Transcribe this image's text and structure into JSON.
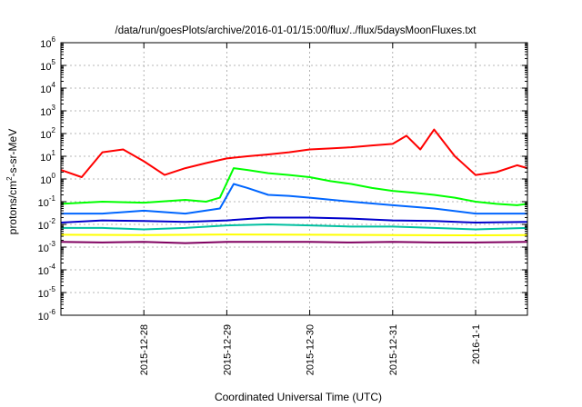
{
  "chart_data": {
    "type": "line",
    "title": "/data/run/goesPlots/archive/2016-01-01/15:00/flux/../flux/5daysMoonFluxes.txt",
    "xlabel": "Coordinated Universal Time (UTC)",
    "ylabel": {
      "base": "protons/cm",
      "sup": "2",
      "rest": "-s-sr-MeV"
    },
    "yscale": "log",
    "ylim": [
      1e-06,
      1000000.0
    ],
    "xlim": [
      "2015-12-27 00:00",
      "2016-01-01 15:00"
    ],
    "grid": true,
    "legend": "none",
    "y_ticks": [
      {
        "value": 1e-06,
        "base": "10",
        "exp": "-6"
      },
      {
        "value": 1e-05,
        "base": "10",
        "exp": "-5"
      },
      {
        "value": 0.0001,
        "base": "10",
        "exp": "-4"
      },
      {
        "value": 0.001,
        "base": "10",
        "exp": "-3"
      },
      {
        "value": 0.01,
        "base": "10",
        "exp": "-2"
      },
      {
        "value": 0.1,
        "base": "10",
        "exp": "-1"
      },
      {
        "value": 1,
        "base": "10",
        "exp": "0"
      },
      {
        "value": 10,
        "base": "10",
        "exp": "1"
      },
      {
        "value": 100,
        "base": "10",
        "exp": "2"
      },
      {
        "value": 1000,
        "base": "10",
        "exp": "3"
      },
      {
        "value": 10000,
        "base": "10",
        "exp": "4"
      },
      {
        "value": 100000,
        "base": "10",
        "exp": "5"
      },
      {
        "value": 1000000,
        "base": "10",
        "exp": "6"
      }
    ],
    "x_ticks": [
      {
        "label": "2015-12-28",
        "value": "2015-12-28 00:00"
      },
      {
        "label": "2015-12-29",
        "value": "2015-12-29 00:00"
      },
      {
        "label": "2015-12-30",
        "value": "2015-12-30 00:00"
      },
      {
        "label": "2015-12-31",
        "value": "2015-12-31 00:00"
      },
      {
        "label": "2016-1-1",
        "value": "2016-01-01 00:00"
      }
    ],
    "series": [
      {
        "color": "#ff0000",
        "x": [
          "2015-12-27 00:00",
          "2015-12-27 06:00",
          "2015-12-27 12:00",
          "2015-12-27 18:00",
          "2015-12-28 00:00",
          "2015-12-28 06:00",
          "2015-12-28 12:00",
          "2015-12-28 18:00",
          "2015-12-29 00:00",
          "2015-12-29 06:00",
          "2015-12-29 12:00",
          "2015-12-29 18:00",
          "2015-12-30 00:00",
          "2015-12-30 06:00",
          "2015-12-30 12:00",
          "2015-12-30 18:00",
          "2015-12-31 00:00",
          "2015-12-31 04:00",
          "2015-12-31 08:00",
          "2015-12-31 12:00",
          "2015-12-31 18:00",
          "2016-01-01 00:00",
          "2016-01-01 06:00",
          "2016-01-01 12:00",
          "2016-01-01 15:00"
        ],
        "values": [
          2.5,
          1.2,
          15,
          20,
          6,
          1.5,
          3,
          5,
          8,
          10,
          12,
          15,
          20,
          22,
          25,
          30,
          35,
          80,
          20,
          150,
          10,
          1.5,
          2,
          4,
          3
        ]
      },
      {
        "color": "#00ff00",
        "x": [
          "2015-12-27 00:00",
          "2015-12-27 12:00",
          "2015-12-28 00:00",
          "2015-12-28 12:00",
          "2015-12-28 18:00",
          "2015-12-28 22:00",
          "2015-12-29 02:00",
          "2015-12-29 06:00",
          "2015-12-29 12:00",
          "2015-12-29 18:00",
          "2015-12-30 00:00",
          "2015-12-30 06:00",
          "2015-12-30 12:00",
          "2015-12-30 18:00",
          "2015-12-31 00:00",
          "2015-12-31 06:00",
          "2015-12-31 12:00",
          "2015-12-31 18:00",
          "2016-01-01 00:00",
          "2016-01-01 06:00",
          "2016-01-01 12:00",
          "2016-01-01 15:00"
        ],
        "values": [
          0.08,
          0.1,
          0.09,
          0.12,
          0.1,
          0.15,
          3,
          2.5,
          1.8,
          1.5,
          1.2,
          0.8,
          0.6,
          0.4,
          0.3,
          0.25,
          0.2,
          0.15,
          0.1,
          0.08,
          0.07,
          0.08
        ]
      },
      {
        "color": "#0066ff",
        "x": [
          "2015-12-27 00:00",
          "2015-12-27 12:00",
          "2015-12-28 00:00",
          "2015-12-28 12:00",
          "2015-12-28 22:00",
          "2015-12-29 02:00",
          "2015-12-29 06:00",
          "2015-12-29 12:00",
          "2015-12-29 18:00",
          "2015-12-30 00:00",
          "2015-12-30 12:00",
          "2015-12-31 00:00",
          "2015-12-31 12:00",
          "2016-01-01 00:00",
          "2016-01-01 15:00"
        ],
        "values": [
          0.03,
          0.03,
          0.04,
          0.03,
          0.05,
          0.6,
          0.4,
          0.2,
          0.18,
          0.15,
          0.1,
          0.07,
          0.05,
          0.03,
          0.03
        ]
      },
      {
        "color": "#0000cc",
        "x": [
          "2015-12-27 00:00",
          "2015-12-27 12:00",
          "2015-12-28 00:00",
          "2015-12-28 12:00",
          "2015-12-29 00:00",
          "2015-12-29 12:00",
          "2015-12-30 00:00",
          "2015-12-30 12:00",
          "2015-12-31 00:00",
          "2015-12-31 12:00",
          "2016-01-01 00:00",
          "2016-01-01 15:00"
        ],
        "values": [
          0.012,
          0.015,
          0.014,
          0.013,
          0.015,
          0.02,
          0.02,
          0.018,
          0.015,
          0.014,
          0.012,
          0.013
        ]
      },
      {
        "color": "#00c0a0",
        "x": [
          "2015-12-27 00:00",
          "2015-12-27 12:00",
          "2015-12-28 00:00",
          "2015-12-28 12:00",
          "2015-12-29 00:00",
          "2015-12-29 12:00",
          "2015-12-30 00:00",
          "2015-12-30 12:00",
          "2015-12-31 00:00",
          "2015-12-31 12:00",
          "2016-01-01 00:00",
          "2016-01-01 15:00"
        ],
        "values": [
          0.007,
          0.007,
          0.006,
          0.007,
          0.009,
          0.01,
          0.009,
          0.008,
          0.008,
          0.007,
          0.006,
          0.007
        ]
      },
      {
        "color": "#ffff00",
        "x": [
          "2015-12-27 00:00",
          "2015-12-28 00:00",
          "2015-12-29 00:00",
          "2015-12-30 00:00",
          "2015-12-31 00:00",
          "2016-01-01 00:00",
          "2016-01-01 15:00"
        ],
        "values": [
          0.0035,
          0.0034,
          0.0036,
          0.0035,
          0.0034,
          0.0033,
          0.0034
        ]
      },
      {
        "color": "#800060",
        "x": [
          "2015-12-27 00:00",
          "2015-12-27 12:00",
          "2015-12-28 00:00",
          "2015-12-28 12:00",
          "2015-12-29 00:00",
          "2015-12-29 12:00",
          "2015-12-30 00:00",
          "2015-12-30 12:00",
          "2015-12-31 00:00",
          "2015-12-31 12:00",
          "2016-01-01 00:00",
          "2016-01-01 15:00"
        ],
        "values": [
          0.0017,
          0.0016,
          0.0017,
          0.0015,
          0.0017,
          0.0017,
          0.0017,
          0.0016,
          0.0017,
          0.0016,
          0.0016,
          0.0017
        ]
      }
    ]
  }
}
